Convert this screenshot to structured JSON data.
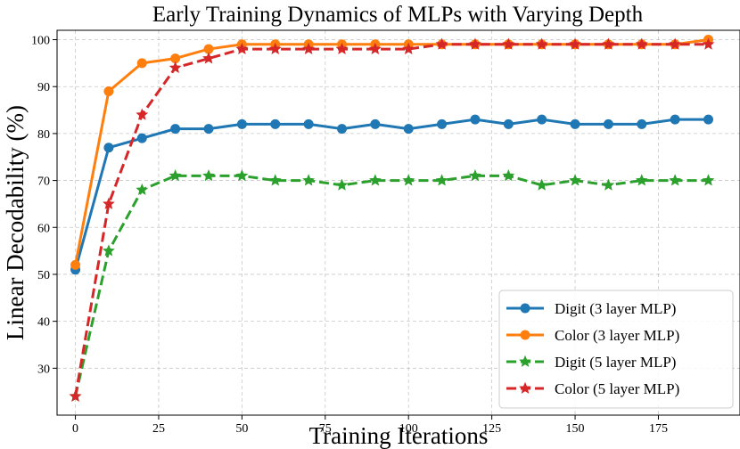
{
  "chart_data": {
    "type": "line",
    "title": "Early Training Dynamics of MLPs with Varying Depth",
    "xlabel": "Training Iterations",
    "ylabel": "Linear Decodability (%)",
    "xlim": [
      -5.5,
      199.5
    ],
    "ylim": [
      20,
      102
    ],
    "xticks": [
      0,
      25,
      50,
      75,
      100,
      125,
      150,
      175
    ],
    "yticks": [
      30,
      40,
      50,
      60,
      70,
      80,
      90,
      100
    ],
    "grid": true,
    "legend_position": "lower-right",
    "x": [
      0,
      10,
      20,
      30,
      40,
      50,
      60,
      70,
      80,
      90,
      100,
      110,
      120,
      130,
      140,
      150,
      160,
      170,
      180,
      190
    ],
    "series": [
      {
        "name": "Digit (3 layer MLP)",
        "color": "#1f77b4",
        "linestyle": "solid",
        "marker": "circle",
        "values": [
          51,
          77,
          79,
          81,
          81,
          82,
          82,
          82,
          81,
          82,
          81,
          82,
          83,
          82,
          83,
          82,
          82,
          82,
          83,
          83
        ]
      },
      {
        "name": "Color (3 layer MLP)",
        "color": "#ff7f0e",
        "linestyle": "solid",
        "marker": "circle",
        "values": [
          52,
          89,
          95,
          96,
          98,
          99,
          99,
          99,
          99,
          99,
          99,
          99,
          99,
          99,
          99,
          99,
          99,
          99,
          99,
          100
        ]
      },
      {
        "name": "Digit (5 layer MLP)",
        "color": "#2ca02c",
        "linestyle": "dashed",
        "marker": "star",
        "values": [
          24,
          55,
          68,
          71,
          71,
          71,
          70,
          70,
          69,
          70,
          70,
          70,
          71,
          71,
          69,
          70,
          69,
          70,
          70,
          70
        ]
      },
      {
        "name": "Color (5 layer MLP)",
        "color": "#d62728",
        "linestyle": "dashed",
        "marker": "star",
        "values": [
          24,
          65,
          84,
          94,
          96,
          98,
          98,
          98,
          98,
          98,
          98,
          99,
          99,
          99,
          99,
          99,
          99,
          99,
          99,
          99
        ]
      }
    ]
  }
}
